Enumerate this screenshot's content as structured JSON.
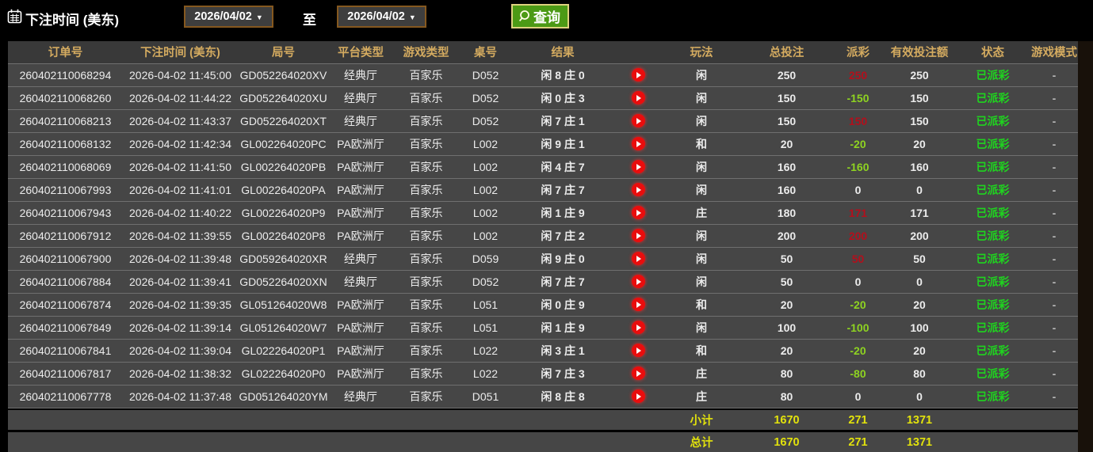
{
  "topbar": {
    "title": "下注时间 (美东)",
    "date_from": "2026/04/02",
    "to_label": "至",
    "date_to": "2026/04/02",
    "search_label": "查询",
    "calendar_icon": "calendar-icon",
    "search_icon": "magnifier-icon"
  },
  "table": {
    "columns": [
      "订单号",
      "下注时间 (美东)",
      "局号",
      "平台类型",
      "游戏类型",
      "桌号",
      "结果",
      "",
      "玩法",
      "总投注",
      "派彩",
      "有效投注额",
      "状态",
      "游戏模式"
    ],
    "rows": [
      {
        "order_id": "260402110068294",
        "bet_time": "2026-04-02 11:45:00",
        "round_id": "GD052264020XV",
        "platform": "经典厅",
        "game_type": "百家乐",
        "table_id": "D052",
        "result": "闲 8 庄 0",
        "bet_type": "闲",
        "total_bet": "250",
        "payout": "250",
        "valid_bet": "250",
        "status": "已派彩",
        "game_mode": "-"
      },
      {
        "order_id": "260402110068260",
        "bet_time": "2026-04-02 11:44:22",
        "round_id": "GD052264020XU",
        "platform": "经典厅",
        "game_type": "百家乐",
        "table_id": "D052",
        "result": "闲 0 庄 3",
        "bet_type": "闲",
        "total_bet": "150",
        "payout": "-150",
        "valid_bet": "150",
        "status": "已派彩",
        "game_mode": "-"
      },
      {
        "order_id": "260402110068213",
        "bet_time": "2026-04-02 11:43:37",
        "round_id": "GD052264020XT",
        "platform": "经典厅",
        "game_type": "百家乐",
        "table_id": "D052",
        "result": "闲 7 庄 1",
        "bet_type": "闲",
        "total_bet": "150",
        "payout": "150",
        "valid_bet": "150",
        "status": "已派彩",
        "game_mode": "-"
      },
      {
        "order_id": "260402110068132",
        "bet_time": "2026-04-02 11:42:34",
        "round_id": "GL002264020PC",
        "platform": "PA欧洲厅",
        "game_type": "百家乐",
        "table_id": "L002",
        "result": "闲 9 庄 1",
        "bet_type": "和",
        "total_bet": "20",
        "payout": "-20",
        "valid_bet": "20",
        "status": "已派彩",
        "game_mode": "-"
      },
      {
        "order_id": "260402110068069",
        "bet_time": "2026-04-02 11:41:50",
        "round_id": "GL002264020PB",
        "platform": "PA欧洲厅",
        "game_type": "百家乐",
        "table_id": "L002",
        "result": "闲 4 庄 7",
        "bet_type": "闲",
        "total_bet": "160",
        "payout": "-160",
        "valid_bet": "160",
        "status": "已派彩",
        "game_mode": "-"
      },
      {
        "order_id": "260402110067993",
        "bet_time": "2026-04-02 11:41:01",
        "round_id": "GL002264020PA",
        "platform": "PA欧洲厅",
        "game_type": "百家乐",
        "table_id": "L002",
        "result": "闲 7 庄 7",
        "bet_type": "闲",
        "total_bet": "160",
        "payout": "0",
        "valid_bet": "0",
        "status": "已派彩",
        "game_mode": "-"
      },
      {
        "order_id": "260402110067943",
        "bet_time": "2026-04-02 11:40:22",
        "round_id": "GL002264020P9",
        "platform": "PA欧洲厅",
        "game_type": "百家乐",
        "table_id": "L002",
        "result": "闲 1 庄 9",
        "bet_type": "庄",
        "total_bet": "180",
        "payout": "171",
        "valid_bet": "171",
        "status": "已派彩",
        "game_mode": "-"
      },
      {
        "order_id": "260402110067912",
        "bet_time": "2026-04-02 11:39:55",
        "round_id": "GL002264020P8",
        "platform": "PA欧洲厅",
        "game_type": "百家乐",
        "table_id": "L002",
        "result": "闲 7 庄 2",
        "bet_type": "闲",
        "total_bet": "200",
        "payout": "200",
        "valid_bet": "200",
        "status": "已派彩",
        "game_mode": "-"
      },
      {
        "order_id": "260402110067900",
        "bet_time": "2026-04-02 11:39:48",
        "round_id": "GD059264020XR",
        "platform": "经典厅",
        "game_type": "百家乐",
        "table_id": "D059",
        "result": "闲 9 庄 0",
        "bet_type": "闲",
        "total_bet": "50",
        "payout": "50",
        "valid_bet": "50",
        "status": "已派彩",
        "game_mode": "-"
      },
      {
        "order_id": "260402110067884",
        "bet_time": "2026-04-02 11:39:41",
        "round_id": "GD052264020XN",
        "platform": "经典厅",
        "game_type": "百家乐",
        "table_id": "D052",
        "result": "闲 7 庄 7",
        "bet_type": "闲",
        "total_bet": "50",
        "payout": "0",
        "valid_bet": "0",
        "status": "已派彩",
        "game_mode": "-"
      },
      {
        "order_id": "260402110067874",
        "bet_time": "2026-04-02 11:39:35",
        "round_id": "GL051264020W8",
        "platform": "PA欧洲厅",
        "game_type": "百家乐",
        "table_id": "L051",
        "result": "闲 0 庄 9",
        "bet_type": "和",
        "total_bet": "20",
        "payout": "-20",
        "valid_bet": "20",
        "status": "已派彩",
        "game_mode": "-"
      },
      {
        "order_id": "260402110067849",
        "bet_time": "2026-04-02 11:39:14",
        "round_id": "GL051264020W7",
        "platform": "PA欧洲厅",
        "game_type": "百家乐",
        "table_id": "L051",
        "result": "闲 1 庄 9",
        "bet_type": "闲",
        "total_bet": "100",
        "payout": "-100",
        "valid_bet": "100",
        "status": "已派彩",
        "game_mode": "-"
      },
      {
        "order_id": "260402110067841",
        "bet_time": "2026-04-02 11:39:04",
        "round_id": "GL022264020P1",
        "platform": "PA欧洲厅",
        "game_type": "百家乐",
        "table_id": "L022",
        "result": "闲 3 庄 1",
        "bet_type": "和",
        "total_bet": "20",
        "payout": "-20",
        "valid_bet": "20",
        "status": "已派彩",
        "game_mode": "-"
      },
      {
        "order_id": "260402110067817",
        "bet_time": "2026-04-02 11:38:32",
        "round_id": "GL022264020P0",
        "platform": "PA欧洲厅",
        "game_type": "百家乐",
        "table_id": "L022",
        "result": "闲 7 庄 3",
        "bet_type": "庄",
        "total_bet": "80",
        "payout": "-80",
        "valid_bet": "80",
        "status": "已派彩",
        "game_mode": "-"
      },
      {
        "order_id": "260402110067778",
        "bet_time": "2026-04-02 11:37:48",
        "round_id": "GD051264020YM",
        "platform": "经典厅",
        "game_type": "百家乐",
        "table_id": "D051",
        "result": "闲 8 庄 8",
        "bet_type": "庄",
        "total_bet": "80",
        "payout": "0",
        "valid_bet": "0",
        "status": "已派彩",
        "game_mode": "-"
      }
    ],
    "subtotal": {
      "label": "小计",
      "total_bet": "1670",
      "payout": "271",
      "valid_bet": "1371"
    },
    "total": {
      "label": "总计",
      "total_bet": "1670",
      "payout": "271",
      "valid_bet": "1371"
    }
  },
  "colors": {
    "header_gold": "#d4ab60",
    "payout_positive_red": "#b30f1c",
    "payout_negative_green": "#8ed321",
    "status_green": "#1fd41f",
    "sum_yellow": "#e2e20c",
    "button_green": "#4c9a15",
    "button_border": "#ddd27e",
    "date_border_brown": "#85581f",
    "play_button_red": "#e90d0d",
    "row_bg": "#464646",
    "header_bg": "#393939"
  }
}
